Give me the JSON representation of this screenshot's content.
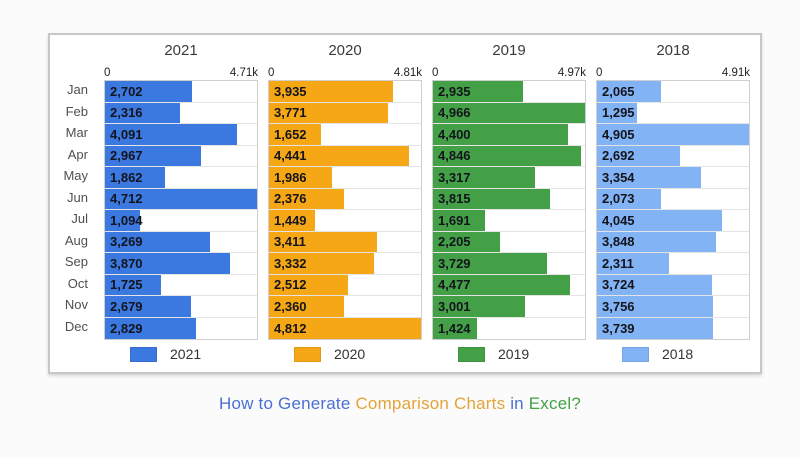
{
  "title": {
    "segments": [
      {
        "text": "How to Generate ",
        "color": "#4a6fd4"
      },
      {
        "text": "Comparison Charts",
        "color": "#e3a43c"
      },
      {
        "text": " in ",
        "color": "#4a6fd4"
      },
      {
        "text": "Excel?",
        "color": "#43a047"
      }
    ]
  },
  "chart_data": {
    "type": "bar",
    "orientation": "horizontal",
    "grid": false,
    "legend_position": "bottom-per-panel",
    "categories": [
      "Jan",
      "Feb",
      "Mar",
      "Apr",
      "May",
      "Jun",
      "Jul",
      "Aug",
      "Sep",
      "Oct",
      "Nov",
      "Dec"
    ],
    "series": [
      {
        "name": "2021",
        "color": "#3b78e0",
        "axis_min_label": "0",
        "axis_max_label": "4.71k",
        "values": [
          2702,
          2316,
          4091,
          2967,
          1862,
          4712,
          1094,
          3269,
          3870,
          1725,
          2679,
          2829
        ]
      },
      {
        "name": "2020",
        "color": "#f5a716",
        "axis_min_label": "0",
        "axis_max_label": "4.81k",
        "values": [
          3935,
          3771,
          1652,
          4441,
          1986,
          2376,
          1449,
          3411,
          3332,
          2512,
          2360,
          4812
        ]
      },
      {
        "name": "2019",
        "color": "#43a047",
        "axis_min_label": "0",
        "axis_max_label": "4.97k",
        "values": [
          2935,
          4966,
          4400,
          4846,
          3317,
          3815,
          1691,
          2205,
          3729,
          4477,
          3001,
          1424
        ]
      },
      {
        "name": "2018",
        "color": "#82b3f4",
        "axis_min_label": "0",
        "axis_max_label": "4.91k",
        "values": [
          2065,
          1295,
          4905,
          2692,
          3354,
          2073,
          4045,
          3848,
          2311,
          3724,
          3756,
          3739
        ]
      }
    ]
  }
}
